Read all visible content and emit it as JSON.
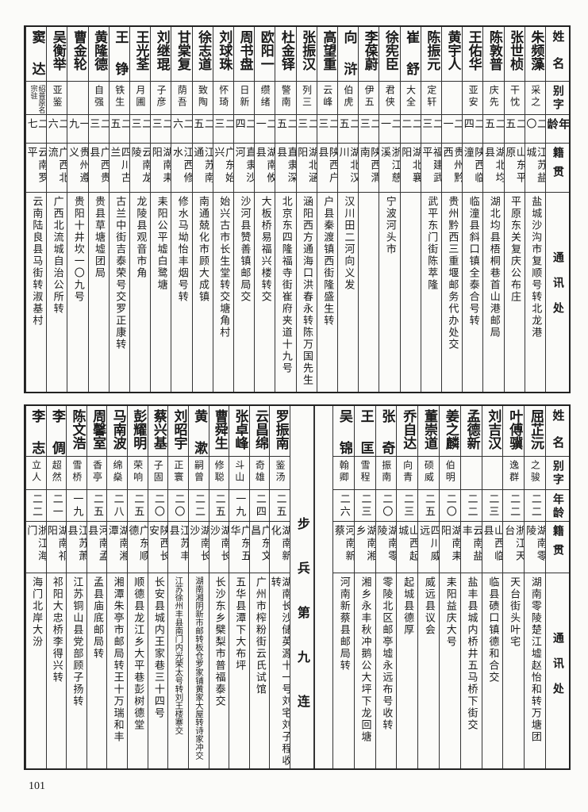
{
  "headers": {
    "name": "姓名",
    "alias": "别字",
    "age": "年龄",
    "native_place": "籍贯",
    "address": "通讯处"
  },
  "top_table": [
    {
      "name": "朱频藻",
      "alias": "采之",
      "age": "二〇",
      "native_place": "江苏盐城",
      "address": "盐城沙沟市复顺号转北龙港"
    },
    {
      "name": "张世桢",
      "alias": "干忱",
      "age": "二五",
      "native_place": "山东平原",
      "address": "平原东关复庆公布庄"
    },
    {
      "name": "陈敦普",
      "alias": "庆先",
      "age": "二五",
      "native_place": "湖北均县",
      "address": "湖北均县梧桐巷首山港邮局"
    },
    {
      "name": "王佑华",
      "alias": "亚安",
      "age": "二四",
      "native_place": "陕西临潼",
      "address": "临潼县斜口镇全泰合号转"
    },
    {
      "name": "黄宇人",
      "alias": "",
      "age": "二一",
      "native_place": "贵州黔西",
      "address": "贵州黔西三重堰邮务代办处交"
    },
    {
      "name": "陈振元",
      "alias": "定轩",
      "age": "二三",
      "native_place": "福建武平",
      "address": "武平东门街陈萃隆"
    },
    {
      "name": "崔舒",
      "alias": "大全",
      "age": "二二",
      "native_place": "湖北襄阳",
      "address": ""
    },
    {
      "name": "徐宪臣",
      "alias": "君侠",
      "age": "二一",
      "native_place": "浙江慈溪",
      "address": "宁波河头市"
    },
    {
      "name": "李葆蔚",
      "alias": "伊五",
      "age": "二三",
      "native_place": "陕西渭南",
      "address": ""
    },
    {
      "name": "向浒",
      "alias": "伯虎",
      "age": "二五",
      "native_place": "湖北汉川",
      "address": "汉川田二河向义发"
    },
    {
      "name": "高望重",
      "alias": "云峰",
      "age": "二三",
      "native_place": "陕西户县",
      "address": "户县秦渡镇西街隆盛生转"
    },
    {
      "name": "张振汉",
      "alias": "列三",
      "age": "二三",
      "native_place": "湖北涵阳",
      "address": "涵阳西方通海口洪春永转陈万国先生"
    },
    {
      "name": "杜金铎",
      "alias": "警南",
      "age": "二五",
      "native_place": "直隶深县",
      "address": "北京东四隆福寺街崔府夹道十九号"
    },
    {
      "name": "欧阳一",
      "alias": "缵绪",
      "age": "二一",
      "native_place": "湖南攸县",
      "address": "大板桥易福兴楼转交"
    },
    {
      "name": "周书盘",
      "alias": "日新",
      "age": "二四",
      "native_place": "直隶沙河",
      "address": "沙河县赞善镇邮局交"
    },
    {
      "name": "刘球珠",
      "alias": "怀琦",
      "age": "二三",
      "native_place": "广东始兴",
      "address": "始兴古市长生堂转交塘角村"
    },
    {
      "name": "徐志道",
      "alias": "致陶",
      "age": "二五",
      "native_place": "江苏南通",
      "address": "南通兢化市顾大成镇"
    },
    {
      "name": "甘棠复",
      "alias": "荫吾",
      "age": "二六",
      "native_place": "江西修水",
      "address": "修水马坳怡丰烟号转"
    },
    {
      "name": "刘继琨",
      "alias": "子彦",
      "age": "二三",
      "native_place": "湖南耒阳",
      "address": "耒阳公平墟白鹭塘"
    },
    {
      "name": "王光荃",
      "alias": "月圃",
      "age": "二三",
      "native_place": "云南龙陵",
      "address": "龙陵县观音市角"
    },
    {
      "name": "王铮",
      "alias": "铁生",
      "age": "二五",
      "native_place": "四川古兰",
      "address": "古兰中街吉泰荣号交罗正康转"
    },
    {
      "name": "黄隆德",
      "alias": "自强",
      "age": "二三",
      "native_place": "广西贵县",
      "address": "贵县草塘墟团局"
    },
    {
      "name": "曹金轮",
      "alias": "",
      "age": "一九",
      "native_place": "贵州遵义",
      "address": "贵阳十井坎一〇九号"
    },
    {
      "name": "吴衡举",
      "alias": "亚鉴",
      "age": "二六",
      "native_place": "广西北流",
      "address": "广西北流城自治公所转"
    },
    {
      "name": "窦达",
      "alias": "绍普原名宗驻",
      "age": "二七",
      "native_place": "云南罗平",
      "address": "云南陆良县马街转淑基村"
    }
  ],
  "bottom_table_right": [
    {
      "name": "屈芷沅",
      "alias": "之骏",
      "age": "二二",
      "native_place": "湖南零陵",
      "address": "湖南零陵楚江墟赵怡和转万塘团"
    },
    {
      "name": "叶傅骥",
      "alias": "逸群",
      "age": "二二",
      "native_place": "浙江天台",
      "address": "天台街头叶宅"
    },
    {
      "name": "刘吉汉",
      "alias": "",
      "age": "二三",
      "native_place": "山西临县",
      "address": "临县碛口镇德和合交"
    },
    {
      "name": "孟德新",
      "alias": "",
      "age": "二二",
      "native_place": "云南盐丰",
      "address": "盐丰县城内桥井五马桥下街交"
    },
    {
      "name": "姜之麟",
      "alias": "伯明",
      "age": "二〇",
      "native_place": "湖南耒阳",
      "address": "耒阳益庆大号"
    },
    {
      "name": "董崇道",
      "alias": "硕威",
      "age": "二五",
      "native_place": "四川威远",
      "address": "威远县议会"
    },
    {
      "name": "乔自达",
      "alias": "向青",
      "age": "二三",
      "native_place": "山西起城",
      "address": "起城县德厚"
    },
    {
      "name": "张奇",
      "alias": "振南",
      "age": "二〇",
      "native_place": "湖南零陵",
      "address": "零陵北区邮亭墟永远布号收转"
    },
    {
      "name": "王匡",
      "alias": "雪程",
      "age": "二三",
      "native_place": "湖南湘乡",
      "address": "湘乡永丰秋冲鹅公大坪下龙回塘"
    },
    {
      "name": "吴锦",
      "alias": "翰卿",
      "age": "二六",
      "native_place": "河南新蔡",
      "address": "河南新蔡县邮局转"
    }
  ],
  "section_label": "步兵第九连",
  "bottom_table_left": [
    {
      "name": "罗振南",
      "alias": "鉴汤",
      "age": "二五",
      "native_place": "湖南新化",
      "address": "湖南长沙储英源十一号刘宅刘子程收转"
    },
    {
      "name": "云昌绵",
      "alias": "奇雄",
      "age": "二四",
      "native_place": "广东文昌",
      "address": "广州市榨粉街云氏试馆"
    },
    {
      "name": "张卓峰",
      "alias": "斗山",
      "age": "一九",
      "native_place": "广东五华",
      "address": "五华县潭下大布坪"
    },
    {
      "name": "曹舜生",
      "alias": "修聪",
      "age": "二五",
      "native_place": "湖南长沙",
      "address": "长沙东乡檗梨市普福泰交"
    },
    {
      "name": "黄漱",
      "alias": "嗣曾",
      "age": "二二",
      "native_place": "湖南长沙",
      "address": "湖南湘阴新市邮转板仓罗家铺黄家大屋转诗家冲交"
    },
    {
      "name": "刘昭宇",
      "alias": "正寰",
      "age": "二〇",
      "native_place": "江苏丰县",
      "address": "江苏徐州丰县南门内光荣太号转刘王楼寨交"
    },
    {
      "name": "蔡兴基",
      "alias": "子固",
      "age": "二〇",
      "native_place": "陕西长安",
      "address": "长安县城内王家巷三十四号"
    },
    {
      "name": "彭耀明",
      "alias": "荣响",
      "age": "二五",
      "native_place": "广东顺德",
      "address": "顺德县龙江乡大平巷彭树德堂"
    },
    {
      "name": "马南波",
      "alias": "绵燊",
      "age": "二八",
      "native_place": "湖南湘潭",
      "address": "湘潭朱亭市邮局转王十万瑞和丰"
    },
    {
      "name": "周馨室",
      "alias": "香亭",
      "age": "二五",
      "native_place": "河南孟县",
      "address": "孟县庙底邮局转"
    },
    {
      "name": "陈文浩",
      "alias": "雪桥",
      "age": "一九",
      "native_place": "江苏萧县",
      "address": "江苏铜山县党部顾子扬转"
    },
    {
      "name": "李倜",
      "alias": "超然",
      "age": "二一",
      "native_place": "湖南祁阳",
      "address": "祁阳大忠桥李得兴转"
    },
    {
      "name": "李志",
      "alias": "立人",
      "age": "二二",
      "native_place": "浙江海门",
      "address": "海门北岸大汾"
    }
  ],
  "page_number": "101"
}
